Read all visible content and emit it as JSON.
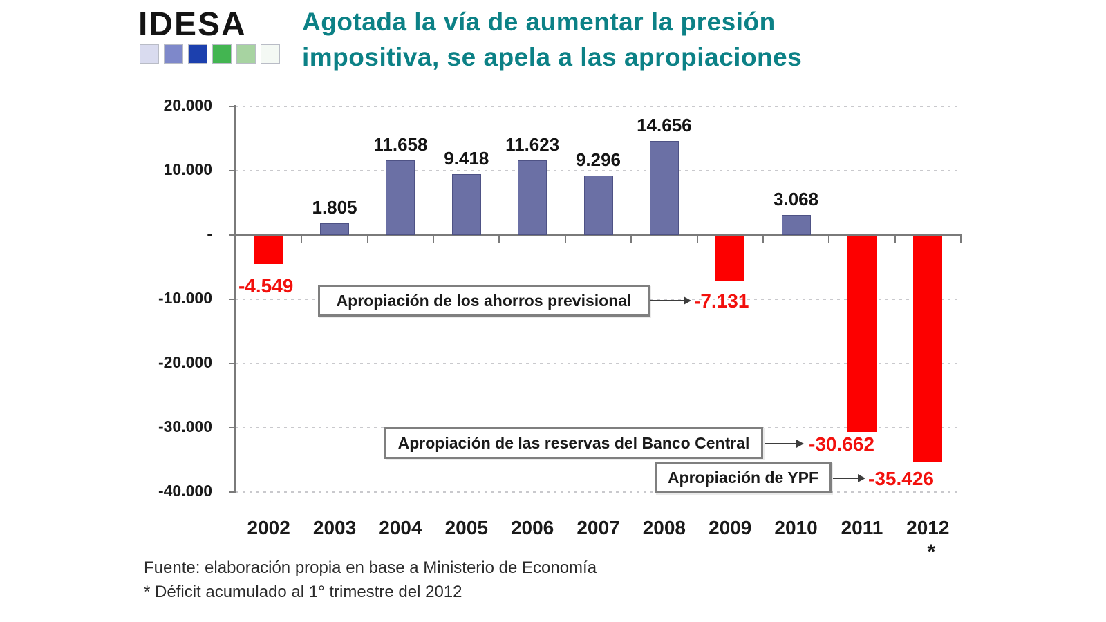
{
  "logo": {
    "text": "IDESA",
    "squares": [
      "#d9dbef",
      "#7e88ca",
      "#1c40ae",
      "#43b551",
      "#a7d3a1",
      "#f4f9f4"
    ]
  },
  "title": {
    "line1": "Agotada la vía de aumentar la presión",
    "line2": "impositiva, se apela a las apropiaciones"
  },
  "colors": {
    "title_teal": "#0c8186",
    "bar_positive": "#6b70a5",
    "bar_negative": "#fd0000",
    "value_label_red": "#f2100c"
  },
  "chart_data": {
    "type": "bar",
    "categories": [
      "2002",
      "2003",
      "2004",
      "2005",
      "2006",
      "2007",
      "2008",
      "2009",
      "2010",
      "2011",
      "2012"
    ],
    "values": [
      -4549,
      1805,
      11658,
      9418,
      11623,
      9296,
      14656,
      -7131,
      3068,
      -30662,
      -35426
    ],
    "value_labels": [
      "-4.549",
      "1.805",
      "11.658",
      "9.418",
      "11.623",
      "9.296",
      "14.656",
      "-7.131",
      "3.068",
      "-30.662",
      "-35.426"
    ],
    "labels_shown_on_chart": [
      "-4.549",
      "1.805",
      "11.658",
      "9.418",
      "11.623",
      "9.296",
      "14.656",
      "3.068"
    ],
    "title": "Agotada la vía de aumentar la presión impositiva, se apela a las apropiaciones",
    "xlabel": "",
    "ylabel": "",
    "ylim": [
      -40000,
      20000
    ],
    "yticks": [
      20000,
      10000,
      0,
      -10000,
      -20000,
      -30000,
      -40000
    ],
    "ytick_labels": [
      "20.000",
      "10.000",
      "-",
      "-10.000",
      "-20.000",
      "-30.000",
      "-40.000"
    ],
    "grid": "horizontal dashed",
    "legend": "none",
    "footnote_marker_category": "2012",
    "footnote_marker": "*"
  },
  "annotations": [
    {
      "label": "Apropiación de los ahorros previsional",
      "value_label": "-7.131",
      "target_year": "2009"
    },
    {
      "label": "Apropiación de las reservas del Banco Central",
      "value_label": "-30.662",
      "target_year": "2011"
    },
    {
      "label": "Apropiación de YPF",
      "value_label": "-35.426",
      "target_year": "2012"
    }
  ],
  "footer": {
    "source": "Fuente:  elaboración propia en base a Ministerio de Economía",
    "note": "* Déficit acumulado al 1° trimestre del 2012"
  }
}
